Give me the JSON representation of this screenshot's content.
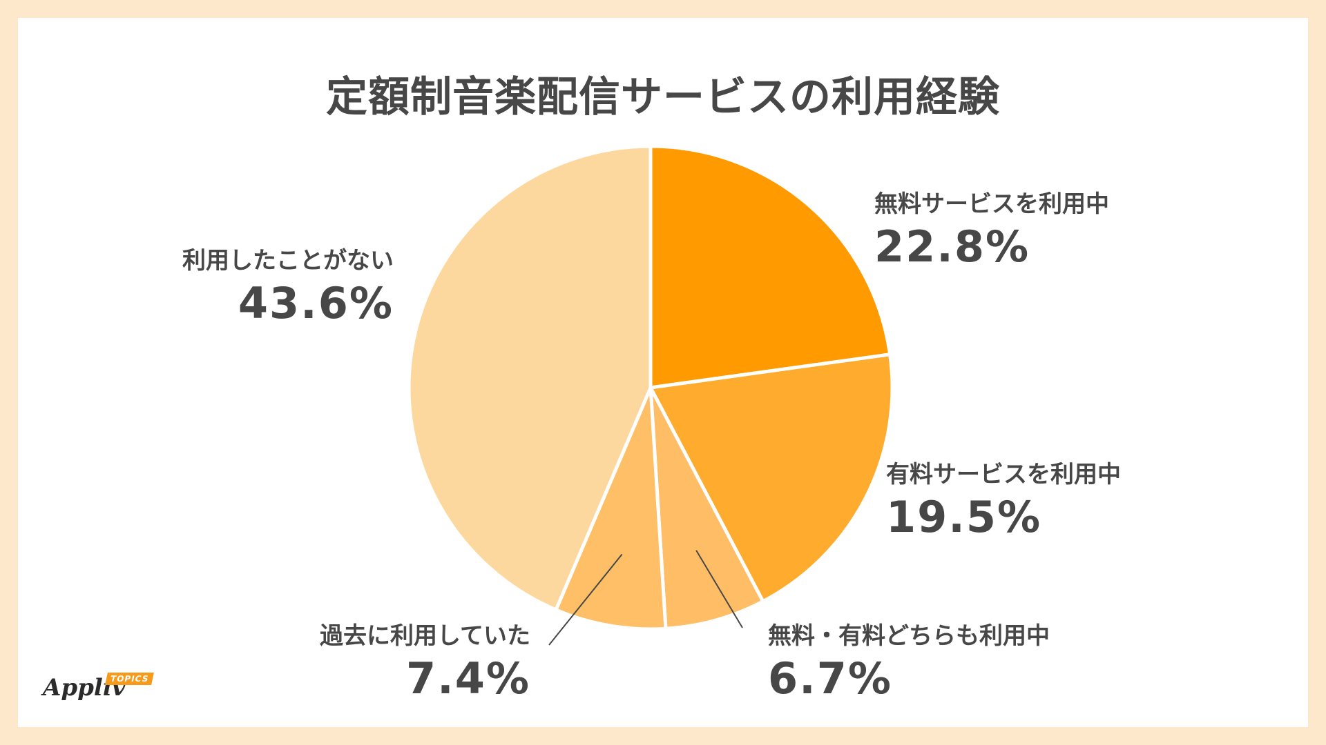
{
  "title": "定額制音楽配信サービスの利用経験",
  "colors": {
    "background": "#fde8cc",
    "slice_1": "#ff9a00",
    "slice_2": "#ffab2e",
    "slice_3": "#ffbd66",
    "slice_4": "#ffbf66",
    "slice_5": "#fdd89e",
    "text": "#474747"
  },
  "chart_data": {
    "type": "pie",
    "start_angle_deg": 0,
    "direction": "clockwise",
    "slices": [
      {
        "label": "無料サービスを利用中",
        "value": 22.8,
        "display": "22.8%"
      },
      {
        "label": "有料サービスを利用中",
        "value": 19.5,
        "display": "19.5%"
      },
      {
        "label": "無料・有料どちらも利用中",
        "value": 6.7,
        "display": "6.7%"
      },
      {
        "label": "過去に利用していた",
        "value": 7.4,
        "display": "7.4%"
      },
      {
        "label": "利用したことがない",
        "value": 43.6,
        "display": "43.6%"
      }
    ]
  },
  "logo": {
    "name": "Appliv",
    "badge": "TOPICS"
  }
}
